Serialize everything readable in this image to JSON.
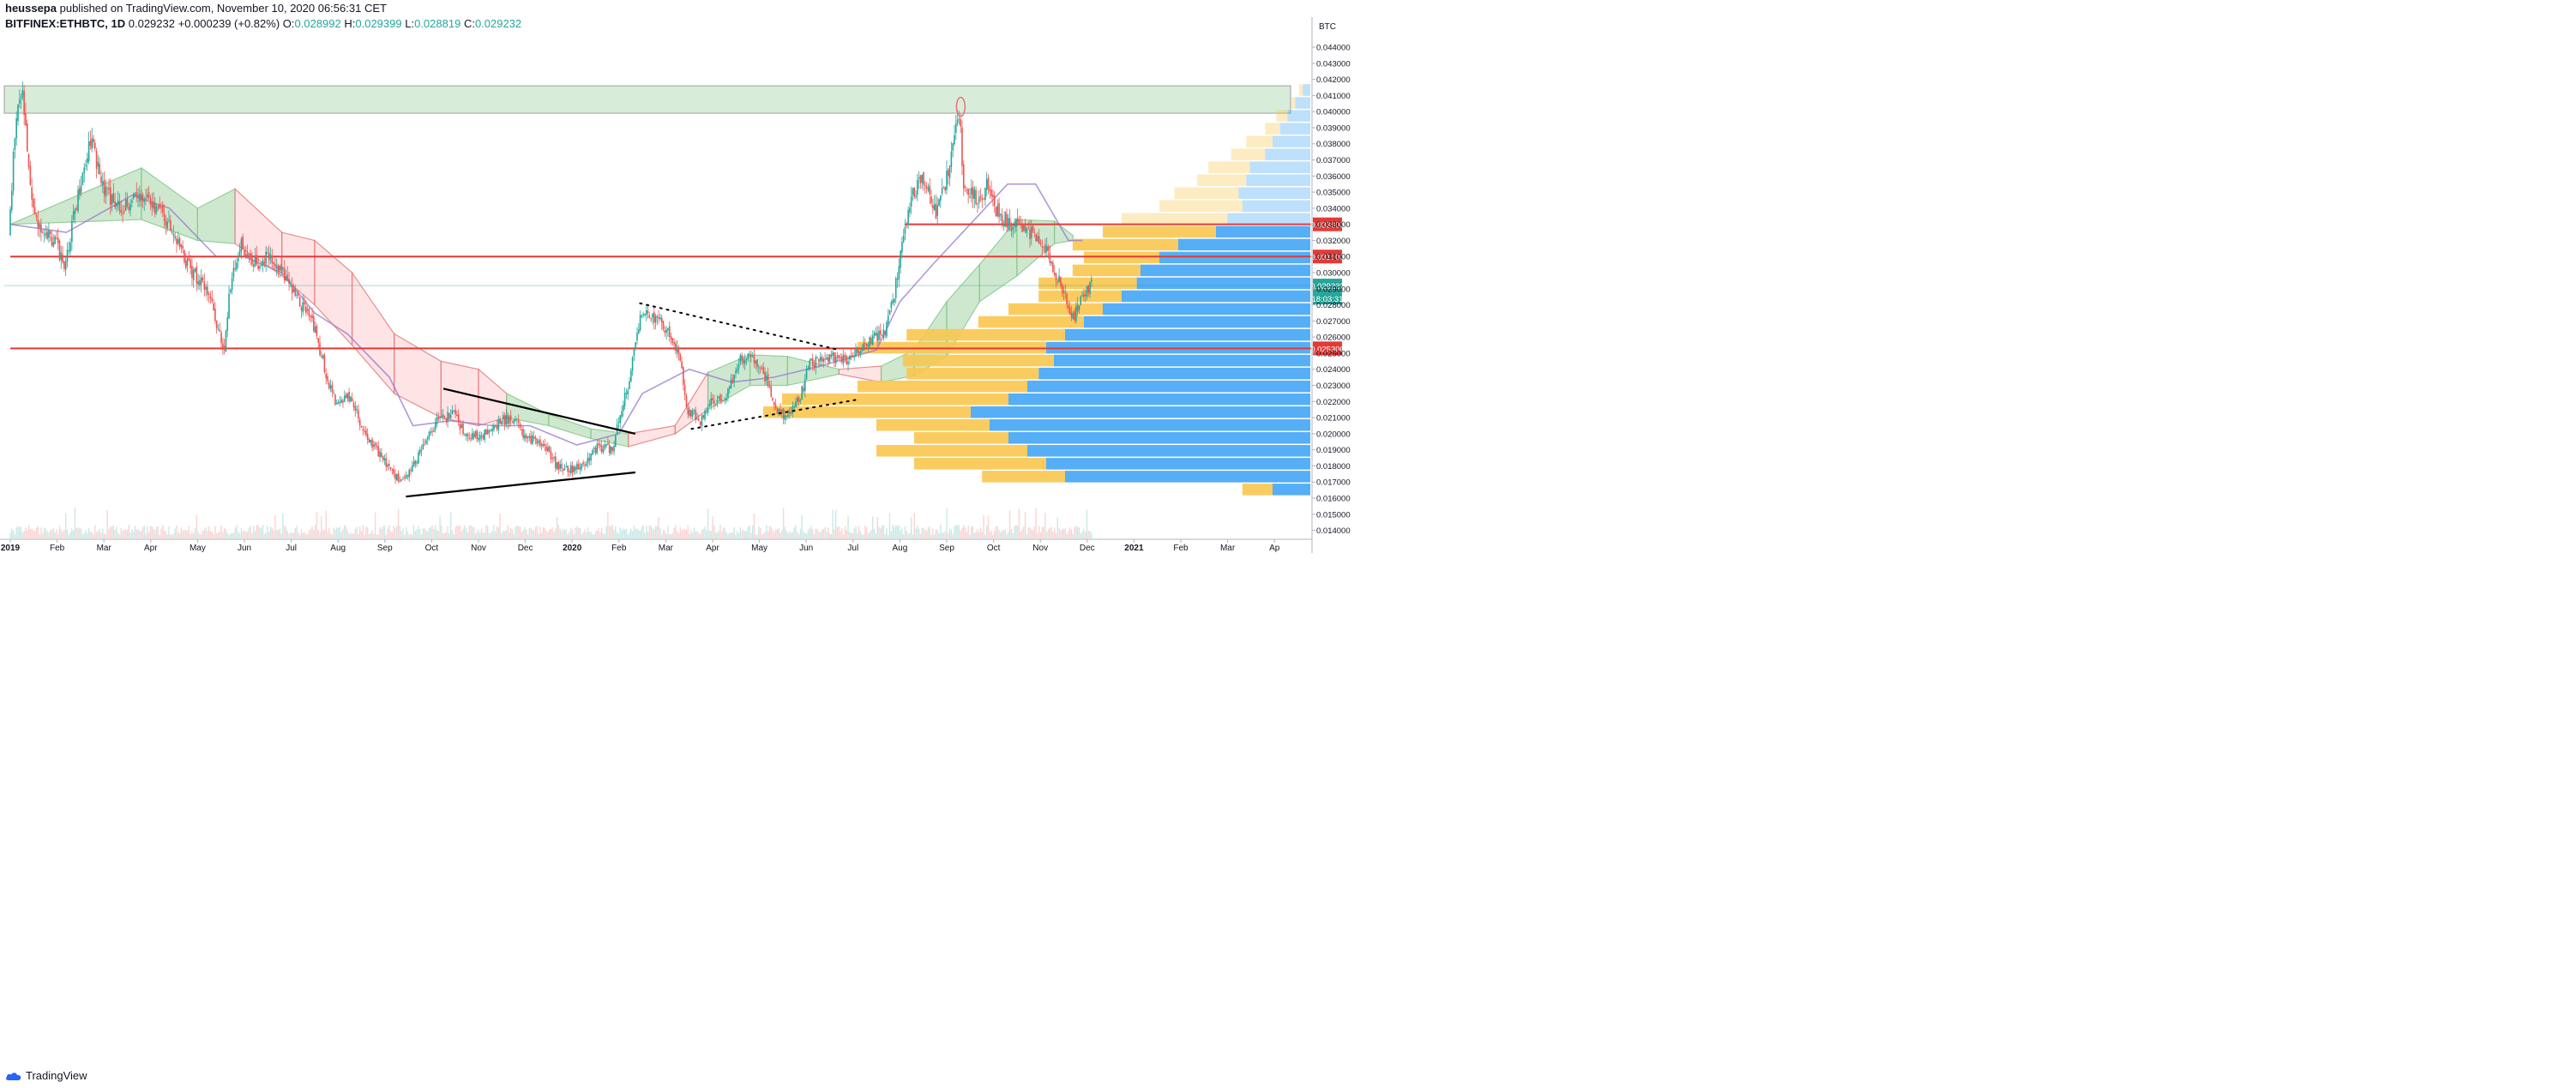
{
  "header": {
    "author": "heussepa",
    "published": "published on TradingView.com, November 10, 2020 06:56:31 CET",
    "symbol": "BITFINEX:ETHBTC, 1D",
    "last": "0.029232",
    "change": "+0.000239 (+0.82%)",
    "open_label": "O:",
    "open": "0.028992",
    "high_label": "H:",
    "high": "0.029399",
    "low_label": "L:",
    "low": "0.028819",
    "close_label": "C:",
    "close": "0.029232"
  },
  "footer": {
    "brand": "TradingView",
    "logo_icon": "tradingview-cloud-icon"
  },
  "colors": {
    "up": "#26a69a",
    "down": "#ef5350",
    "level_line": "#e53935",
    "resistance_zone": "#c8e6c9",
    "kumo_bull": "#a5d6a7",
    "kumo_bear": "#ffcdd2",
    "vp_orange": "#f9c74f",
    "vp_blue": "#42a5f5"
  },
  "chart_data": {
    "type": "candlestick",
    "title": "",
    "ylabel": "BTC",
    "ylim": [
      0.0135,
      0.0448
    ],
    "y_axis_ticks": [
      "0.014000",
      "0.015000",
      "0.016000",
      "0.017000",
      "0.018000",
      "0.019000",
      "0.020000",
      "0.021000",
      "0.022000",
      "0.023000",
      "0.024000",
      "0.025000",
      "0.026000",
      "0.027000",
      "0.028000",
      "0.029000",
      "0.030000",
      "0.031000",
      "0.032000",
      "0.033000",
      "0.034000",
      "0.035000",
      "0.036000",
      "0.037000",
      "0.038000",
      "0.039000",
      "0.040000",
      "0.041000",
      "0.042000",
      "0.043000",
      "0.044000"
    ],
    "x_axis_ticks": [
      "2019",
      "Feb",
      "Mar",
      "Apr",
      "May",
      "Jun",
      "Jul",
      "Aug",
      "Sep",
      "Oct",
      "Nov",
      "Dec",
      "2020",
      "Feb",
      "Mar",
      "Apr",
      "May",
      "Jun",
      "Jul",
      "Aug",
      "Sep",
      "Oct",
      "Nov",
      "Dec",
      "2021",
      "Feb",
      "Mar",
      "Ap"
    ],
    "x_tick_index": [
      0,
      1,
      2,
      3,
      4,
      5,
      6,
      7,
      8,
      9,
      10,
      11,
      12,
      13,
      14,
      15,
      16,
      17,
      18,
      19,
      20,
      21,
      22,
      23,
      24,
      25,
      26,
      27
    ],
    "bold_x_ticks": [
      "2019",
      "2020",
      "2021"
    ],
    "price_path": [
      [
        0.0,
        0.0322
      ],
      [
        0.15,
        0.0395
      ],
      [
        0.3,
        0.0412
      ],
      [
        0.5,
        0.0338
      ],
      [
        0.8,
        0.0325
      ],
      [
        1.0,
        0.0318
      ],
      [
        1.2,
        0.0305
      ],
      [
        1.5,
        0.0352
      ],
      [
        1.75,
        0.0385
      ],
      [
        2.0,
        0.0352
      ],
      [
        2.4,
        0.034
      ],
      [
        2.8,
        0.0348
      ],
      [
        3.0,
        0.0345
      ],
      [
        3.3,
        0.0335
      ],
      [
        3.6,
        0.0322
      ],
      [
        3.8,
        0.0305
      ],
      [
        4.0,
        0.0298
      ],
      [
        4.3,
        0.0285
      ],
      [
        4.5,
        0.0262
      ],
      [
        4.6,
        0.0252
      ],
      [
        4.7,
        0.0285
      ],
      [
        4.95,
        0.0318
      ],
      [
        5.2,
        0.0305
      ],
      [
        5.6,
        0.031
      ],
      [
        5.9,
        0.0298
      ],
      [
        6.2,
        0.0282
      ],
      [
        6.5,
        0.0268
      ],
      [
        6.8,
        0.0235
      ],
      [
        7.0,
        0.0218
      ],
      [
        7.3,
        0.0223
      ],
      [
        7.6,
        0.02
      ],
      [
        7.9,
        0.0188
      ],
      [
        8.2,
        0.0176
      ],
      [
        8.4,
        0.017
      ],
      [
        8.6,
        0.0178
      ],
      [
        8.9,
        0.0195
      ],
      [
        9.2,
        0.021
      ],
      [
        9.5,
        0.0212
      ],
      [
        9.8,
        0.0198
      ],
      [
        10.2,
        0.02
      ],
      [
        10.5,
        0.0208
      ],
      [
        10.8,
        0.021
      ],
      [
        11.0,
        0.0198
      ],
      [
        11.4,
        0.0195
      ],
      [
        11.7,
        0.018
      ],
      [
        12.0,
        0.0178
      ],
      [
        12.3,
        0.0182
      ],
      [
        12.6,
        0.0192
      ],
      [
        12.9,
        0.019
      ],
      [
        13.05,
        0.0212
      ],
      [
        13.25,
        0.0232
      ],
      [
        13.5,
        0.0275
      ],
      [
        13.8,
        0.0272
      ],
      [
        14.1,
        0.0262
      ],
      [
        14.3,
        0.0252
      ],
      [
        14.5,
        0.0215
      ],
      [
        14.8,
        0.0208
      ],
      [
        15.0,
        0.022
      ],
      [
        15.3,
        0.0222
      ],
      [
        15.6,
        0.0245
      ],
      [
        15.9,
        0.0248
      ],
      [
        16.1,
        0.024
      ],
      [
        16.4,
        0.0215
      ],
      [
        16.6,
        0.021
      ],
      [
        16.9,
        0.0222
      ],
      [
        17.1,
        0.0243
      ],
      [
        17.4,
        0.0249
      ],
      [
        17.8,
        0.0245
      ],
      [
        18.1,
        0.025
      ],
      [
        18.4,
        0.0258
      ],
      [
        18.7,
        0.0262
      ],
      [
        18.9,
        0.0285
      ],
      [
        19.1,
        0.032
      ],
      [
        19.3,
        0.0348
      ],
      [
        19.5,
        0.0358
      ],
      [
        19.8,
        0.0338
      ],
      [
        20.0,
        0.0355
      ],
      [
        20.15,
        0.0372
      ],
      [
        20.3,
        0.0401
      ],
      [
        20.4,
        0.0352
      ],
      [
        20.7,
        0.0345
      ],
      [
        20.9,
        0.0355
      ],
      [
        21.1,
        0.0338
      ],
      [
        21.4,
        0.033
      ],
      [
        21.7,
        0.0326
      ],
      [
        22.0,
        0.0322
      ],
      [
        22.3,
        0.0305
      ],
      [
        22.5,
        0.029
      ],
      [
        22.75,
        0.0272
      ],
      [
        22.9,
        0.0285
      ],
      [
        23.1,
        0.0292
      ]
    ],
    "resistance_zone": {
      "y_low": 0.0399,
      "y_high": 0.0416
    },
    "horizontal_levels": [
      {
        "label": "0.033000",
        "y": 0.033,
        "x_start": 19.1
      },
      {
        "label": "0.031000",
        "y": 0.031,
        "x_start": 0.0
      },
      {
        "label": "0.025300",
        "y": 0.0253,
        "x_start": 0.0
      }
    ],
    "last_price_label": "0.029232",
    "countdown_label": "18:03:31",
    "trendlines": [
      {
        "style": "solid",
        "points": [
          [
            9.25,
            0.0228
          ],
          [
            13.35,
            0.02
          ]
        ]
      },
      {
        "style": "solid",
        "points": [
          [
            8.45,
            0.0161
          ],
          [
            13.35,
            0.0176
          ]
        ]
      },
      {
        "style": "dotted",
        "points": [
          [
            13.45,
            0.0281
          ],
          [
            17.7,
            0.0252
          ]
        ]
      },
      {
        "style": "dotted",
        "points": [
          [
            14.55,
            0.0203
          ],
          [
            18.05,
            0.0221
          ]
        ]
      }
    ],
    "highlight_circle": {
      "x": 20.3,
      "y": 0.0403
    },
    "baseline_x_between": [
      [
        0.0,
        0.033,
        0.033,
        "bull"
      ],
      [
        2.8,
        0.0365,
        0.0333,
        "bull"
      ],
      [
        4.0,
        0.034,
        0.032,
        "bull"
      ],
      [
        4.8,
        0.0352,
        0.0318,
        "bear"
      ],
      [
        5.8,
        0.0325,
        0.0298,
        "bear"
      ],
      [
        6.5,
        0.032,
        0.028,
        "bear"
      ],
      [
        7.3,
        0.03,
        0.0255,
        "bear"
      ],
      [
        8.2,
        0.0262,
        0.0225,
        "bear"
      ],
      [
        9.2,
        0.0245,
        0.021,
        "bear"
      ],
      [
        10.0,
        0.024,
        0.0205,
        "bear"
      ],
      [
        10.6,
        0.0225,
        0.021,
        "bull"
      ],
      [
        11.5,
        0.0212,
        0.0205,
        "bull"
      ],
      [
        12.4,
        0.0203,
        0.0197,
        "bull"
      ],
      [
        13.2,
        0.02,
        0.0192,
        "bear"
      ],
      [
        14.2,
        0.0205,
        0.02,
        "bear"
      ],
      [
        14.9,
        0.0238,
        0.0215,
        "bull"
      ],
      [
        15.8,
        0.0249,
        0.023,
        "bull"
      ],
      [
        16.6,
        0.0248,
        0.023,
        "bull"
      ],
      [
        17.7,
        0.024,
        0.0237,
        "bear"
      ],
      [
        18.6,
        0.0242,
        0.0232,
        "bull"
      ],
      [
        19.3,
        0.0252,
        0.0236,
        "bull"
      ],
      [
        20.0,
        0.0282,
        0.0248,
        "bull"
      ],
      [
        20.7,
        0.0305,
        0.0282,
        "bull"
      ],
      [
        21.5,
        0.0333,
        0.0298,
        "bull"
      ],
      [
        22.3,
        0.0332,
        0.0318,
        "bull"
      ],
      [
        22.7,
        0.0323,
        0.032,
        "bull"
      ]
    ],
    "baseline": [
      [
        0.0,
        0.033
      ],
      [
        1.2,
        0.0325
      ],
      [
        2.6,
        0.0348
      ],
      [
        3.4,
        0.034
      ],
      [
        4.4,
        0.031
      ],
      [
        5.0,
        0.031
      ],
      [
        5.8,
        0.03
      ],
      [
        6.5,
        0.0275
      ],
      [
        7.2,
        0.0262
      ],
      [
        8.1,
        0.0235
      ],
      [
        8.6,
        0.0205
      ],
      [
        9.4,
        0.0208
      ],
      [
        10.3,
        0.0205
      ],
      [
        11.1,
        0.0205
      ],
      [
        12.1,
        0.0193
      ],
      [
        13.0,
        0.02
      ],
      [
        13.5,
        0.0225
      ],
      [
        14.5,
        0.024
      ],
      [
        15.4,
        0.0232
      ],
      [
        16.3,
        0.0235
      ],
      [
        17.3,
        0.0242
      ],
      [
        18.5,
        0.0252
      ],
      [
        19.0,
        0.0282
      ],
      [
        19.7,
        0.0305
      ],
      [
        20.5,
        0.033
      ],
      [
        21.3,
        0.0355
      ],
      [
        21.9,
        0.0355
      ],
      [
        22.6,
        0.032
      ],
      [
        22.9,
        0.032
      ]
    ],
    "volume_profile": [
      [
        0.0413,
        0.001,
        0.002
      ],
      [
        0.0405,
        0.001,
        0.004
      ],
      [
        0.0397,
        0.003,
        0.006
      ],
      [
        0.0389,
        0.004,
        0.008
      ],
      [
        0.0381,
        0.007,
        0.01
      ],
      [
        0.0373,
        0.009,
        0.012
      ],
      [
        0.0365,
        0.011,
        0.016
      ],
      [
        0.0357,
        0.013,
        0.017
      ],
      [
        0.0349,
        0.017,
        0.019
      ],
      [
        0.0341,
        0.022,
        0.018
      ],
      [
        0.0333,
        0.028,
        0.022
      ],
      [
        0.0325,
        0.03,
        0.025
      ],
      [
        0.0317,
        0.028,
        0.035
      ],
      [
        0.0309,
        0.02,
        0.04
      ],
      [
        0.0301,
        0.018,
        0.045
      ],
      [
        0.0293,
        0.026,
        0.046
      ],
      [
        0.0285,
        0.022,
        0.05
      ],
      [
        0.0277,
        0.025,
        0.055
      ],
      [
        0.0269,
        0.028,
        0.06
      ],
      [
        0.0261,
        0.042,
        0.065
      ],
      [
        0.0253,
        0.05,
        0.07
      ],
      [
        0.0245,
        0.04,
        0.068
      ],
      [
        0.0237,
        0.035,
        0.072
      ],
      [
        0.0229,
        0.045,
        0.075
      ],
      [
        0.0221,
        0.06,
        0.08
      ],
      [
        0.0213,
        0.055,
        0.09
      ],
      [
        0.0205,
        0.03,
        0.085
      ],
      [
        0.0197,
        0.025,
        0.08
      ],
      [
        0.0189,
        0.04,
        0.075
      ],
      [
        0.0181,
        0.035,
        0.07
      ],
      [
        0.0173,
        0.022,
        0.065
      ],
      [
        0.0165,
        0.008,
        0.01
      ]
    ]
  }
}
